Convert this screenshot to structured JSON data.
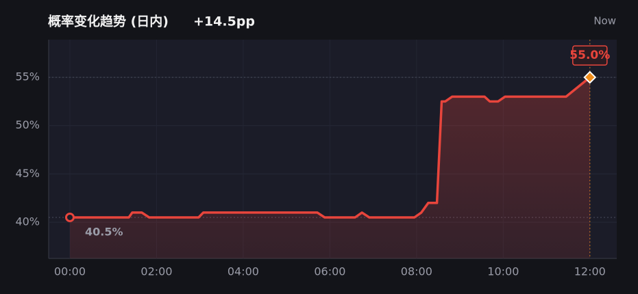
{
  "chart_data": {
    "type": "line",
    "title": "概率变化趋势 (日内)",
    "change_label": "+14.5pp",
    "corner_label": "Now",
    "x": [
      0,
      1.36,
      1.44,
      1.66,
      1.83,
      2.97,
      3.08,
      5.71,
      5.88,
      6.58,
      6.74,
      6.91,
      7.95,
      8.11,
      8.27,
      8.47,
      8.58,
      8.66,
      8.82,
      9.57,
      9.69,
      9.88,
      10.04,
      11.45,
      12
    ],
    "series": [
      {
        "color": "#e8453c",
        "values": [
          40.5,
          40.5,
          41,
          41,
          40.5,
          40.5,
          41,
          41,
          40.5,
          40.5,
          41,
          40.5,
          40.5,
          41,
          42,
          42,
          52.5,
          52.5,
          53,
          53,
          52.5,
          52.5,
          53,
          53,
          55
        ],
        "value_labels": [
          "40.5%",
          null,
          null,
          null,
          null,
          null,
          null,
          null,
          null,
          null,
          null,
          null,
          null,
          null,
          null,
          null,
          null,
          null,
          null,
          null,
          null,
          null,
          null,
          null,
          "55.0%"
        ]
      }
    ],
    "end_marker_color": "#f08c1a",
    "xlim": [
      -0.49,
      12.62
    ],
    "xticks": [
      {
        "value": 0,
        "label": "00:00"
      },
      {
        "value": 2,
        "label": "02:00"
      },
      {
        "value": 4,
        "label": "04:00"
      },
      {
        "value": 6,
        "label": "06:00"
      },
      {
        "value": 8,
        "label": "08:00"
      },
      {
        "value": 10,
        "label": "10:00"
      },
      {
        "value": 12,
        "label": "12:00"
      }
    ],
    "ylim": [
      36.25,
      58.9
    ],
    "yticks": [
      {
        "value": 40,
        "label": "40%"
      },
      {
        "value": 45,
        "label": "45%"
      },
      {
        "value": 50,
        "label": "50%"
      },
      {
        "value": 55,
        "label": "55%"
      }
    ],
    "grid": true
  }
}
